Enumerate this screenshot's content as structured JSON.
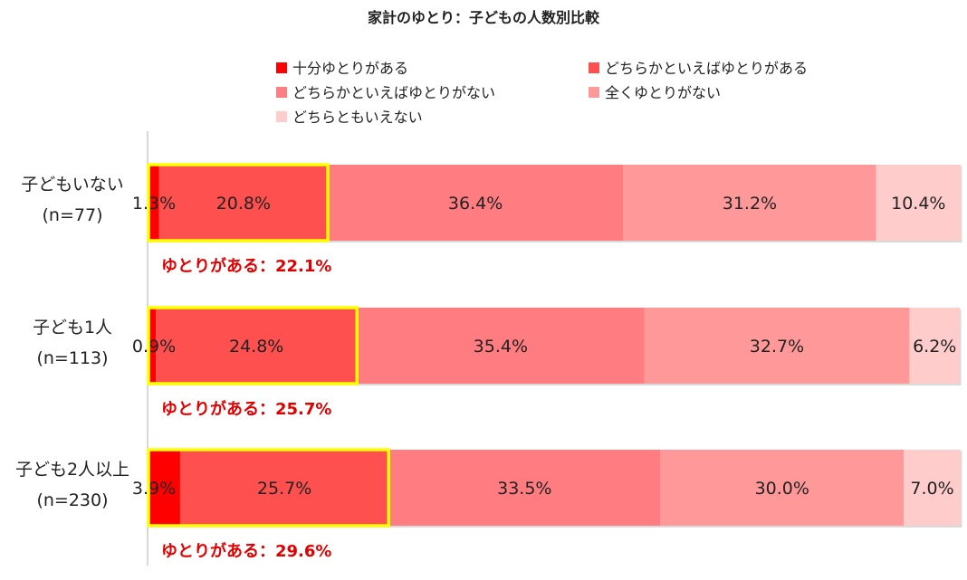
{
  "chart_data": {
    "type": "bar",
    "orientation": "horizontal",
    "stacked": "percent",
    "title": "家計のゆとり：子どもの人数別比較",
    "categories": [
      {
        "label": "子どもいない",
        "sample": "(n=77)"
      },
      {
        "label": "子ども1人",
        "sample": "(n=113)"
      },
      {
        "label": "子ども2人以上",
        "sample": "(n=230)"
      }
    ],
    "series": [
      {
        "name": "十分ゆとりがある",
        "color": "#ff0000",
        "values": [
          1.3,
          0.9,
          3.9
        ],
        "labels": [
          "1.3%",
          "0.9%",
          "3.9%"
        ]
      },
      {
        "name": "どちらかといえばゆとりがある",
        "color": "#ff5050",
        "values": [
          20.8,
          24.8,
          25.7
        ],
        "labels": [
          "20.8%",
          "24.8%",
          "25.7%"
        ]
      },
      {
        "name": "どちらかといえばゆとりがない",
        "color": "#ff7c80",
        "values": [
          36.4,
          35.4,
          33.5
        ],
        "labels": [
          "36.4%",
          "35.4%",
          "33.5%"
        ]
      },
      {
        "name": "全くゆとりがない",
        "color": "#ff9999",
        "values": [
          31.2,
          32.7,
          30.0
        ],
        "labels": [
          "31.2%",
          "32.7%",
          "30.0%"
        ]
      },
      {
        "name": "どちらともいえない",
        "color": "#ffcccc",
        "values": [
          10.4,
          6.2,
          7.0
        ],
        "labels": [
          "10.4%",
          "6.2%",
          "7.0%"
        ]
      }
    ],
    "annotations": [
      "ゆとりがある：22.1%",
      "ゆとりがある：25.7%",
      "ゆとりがある：29.6%"
    ],
    "highlight": {
      "series_range": [
        0,
        1
      ],
      "color": "#ffff00"
    },
    "annotation_color": "#e00000",
    "xlim": [
      0,
      100
    ],
    "legend_position": "top",
    "grid": false
  }
}
